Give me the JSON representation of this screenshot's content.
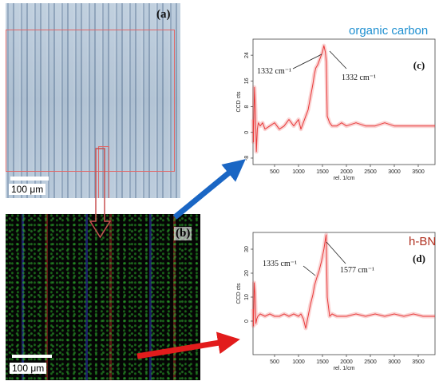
{
  "colors": {
    "spectrum": "#e83a3a",
    "organic_carbon": "#1e8fd0",
    "hbn": "#b03020",
    "arrow_blue": "#1a66c4",
    "arrow_red": "#e21c1c"
  },
  "panel_a": {
    "label": "(a)",
    "scale": "100 μm"
  },
  "panel_b": {
    "label": "(b)",
    "scale": "100 μm"
  },
  "chart_data": [
    {
      "type": "line",
      "panel_label": "(c)",
      "series_label": "organic carbon",
      "ylabel": "CCD cts",
      "xlabel": "rel. 1/cm",
      "xlim": [
        50,
        3850
      ],
      "ylim": [
        -10,
        29
      ],
      "xticks": [
        500,
        1000,
        1500,
        2000,
        2500,
        3000,
        3500
      ],
      "yticks": [
        -8,
        0,
        8,
        16,
        24
      ],
      "annotations": [
        "1332 cm⁻¹",
        "1332 cm⁻¹"
      ],
      "series": [
        {
          "points": [
            [
              50,
              4
            ],
            [
              60,
              -3
            ],
            [
              80,
              14
            ],
            [
              100,
              7
            ],
            [
              120,
              -6
            ],
            [
              140,
              1
            ],
            [
              160,
              3
            ],
            [
              200,
              2
            ],
            [
              250,
              3
            ],
            [
              300,
              1
            ],
            [
              400,
              2
            ],
            [
              500,
              3
            ],
            [
              600,
              1
            ],
            [
              700,
              2
            ],
            [
              800,
              4
            ],
            [
              900,
              2
            ],
            [
              1000,
              4
            ],
            [
              1050,
              1
            ],
            [
              1100,
              3
            ],
            [
              1150,
              5
            ],
            [
              1200,
              7
            ],
            [
              1250,
              11
            ],
            [
              1300,
              15
            ],
            [
              1330,
              18
            ],
            [
              1360,
              20
            ],
            [
              1400,
              21
            ],
            [
              1450,
              23
            ],
            [
              1500,
              25
            ],
            [
              1530,
              27
            ],
            [
              1560,
              25
            ],
            [
              1580,
              22
            ],
            [
              1600,
              5
            ],
            [
              1650,
              3
            ],
            [
              1700,
              2
            ],
            [
              1800,
              2
            ],
            [
              1900,
              3
            ],
            [
              2000,
              2
            ],
            [
              2200,
              3
            ],
            [
              2400,
              2
            ],
            [
              2600,
              2
            ],
            [
              2800,
              3
            ],
            [
              3000,
              2
            ],
            [
              3200,
              2
            ],
            [
              3400,
              2
            ],
            [
              3600,
              2
            ],
            [
              3850,
              2
            ]
          ]
        }
      ]
    },
    {
      "type": "line",
      "panel_label": "(d)",
      "series_label": "h-BN",
      "ylabel": "CCD cts",
      "xlabel": "rel. 1/cm",
      "xlim": [
        50,
        3850
      ],
      "ylim": [
        -14,
        37
      ],
      "xticks": [
        500,
        1000,
        1500,
        2000,
        2500,
        3000,
        3500
      ],
      "yticks": [
        0,
        10,
        20,
        30
      ],
      "annotations": [
        "1335 cm⁻¹",
        "1577 cm⁻¹"
      ],
      "series": [
        {
          "points": [
            [
              50,
              5
            ],
            [
              60,
              -2
            ],
            [
              75,
              16
            ],
            [
              90,
              12
            ],
            [
              110,
              -1
            ],
            [
              130,
              1
            ],
            [
              150,
              2
            ],
            [
              200,
              3
            ],
            [
              300,
              2
            ],
            [
              400,
              3
            ],
            [
              500,
              2
            ],
            [
              600,
              2
            ],
            [
              700,
              3
            ],
            [
              800,
              2
            ],
            [
              900,
              3
            ],
            [
              1000,
              2
            ],
            [
              1050,
              3
            ],
            [
              1100,
              1
            ],
            [
              1150,
              -3
            ],
            [
              1200,
              2
            ],
            [
              1250,
              7
            ],
            [
              1300,
              11
            ],
            [
              1335,
              15
            ],
            [
              1380,
              18
            ],
            [
              1430,
              21
            ],
            [
              1480,
              25
            ],
            [
              1530,
              30
            ],
            [
              1560,
              34
            ],
            [
              1577,
              36
            ],
            [
              1600,
              10
            ],
            [
              1650,
              2
            ],
            [
              1700,
              3
            ],
            [
              1800,
              2
            ],
            [
              2000,
              2
            ],
            [
              2200,
              3
            ],
            [
              2400,
              2
            ],
            [
              2600,
              3
            ],
            [
              2800,
              2
            ],
            [
              3000,
              3
            ],
            [
              3200,
              2
            ],
            [
              3400,
              3
            ],
            [
              3600,
              2
            ],
            [
              3850,
              2
            ]
          ]
        }
      ]
    }
  ]
}
